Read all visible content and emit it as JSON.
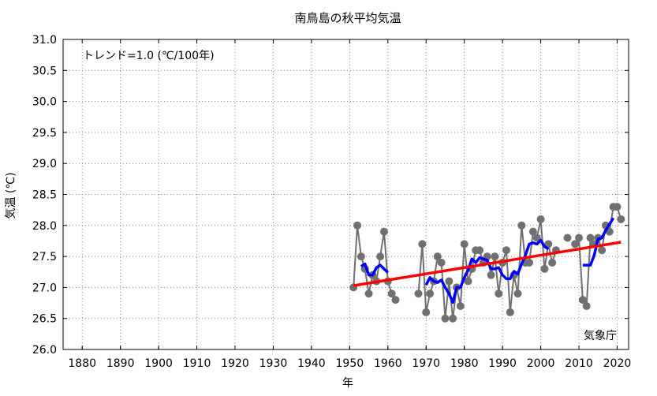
{
  "chart_data": {
    "type": "line",
    "title": "南鳥島の秋平均気温",
    "xlabel": "年",
    "ylabel": "気温 (℃)",
    "annotation": "トレンド=1.0 (℃/100年)",
    "credit": "気象庁",
    "xlim": [
      1875,
      2023
    ],
    "ylim": [
      26.0,
      31.0
    ],
    "xticks": [
      1880,
      1890,
      1900,
      1910,
      1920,
      1930,
      1940,
      1950,
      1960,
      1970,
      1980,
      1990,
      2000,
      2010,
      2020
    ],
    "yticks": [
      "26.0",
      "26.5",
      "27.0",
      "27.5",
      "28.0",
      "28.5",
      "29.0",
      "29.5",
      "30.0",
      "30.5",
      "31.0"
    ],
    "grid": true,
    "colors": {
      "annual": "#707070",
      "running_mean": "#0000ff",
      "trend": "#ff0000"
    },
    "series": [
      {
        "years": [
          1951,
          1952,
          1953,
          1954,
          1955,
          1956,
          1957,
          1958,
          1959,
          1960,
          1961,
          1962,
          1968,
          1969,
          1970,
          1971,
          1972,
          1973,
          1974,
          1975,
          1976,
          1977,
          1978,
          1979,
          1980,
          1981,
          1982,
          1983,
          1984,
          1985,
          1986,
          1987,
          1988,
          1989,
          1990,
          1991,
          1992,
          1993,
          1994,
          1995,
          1996,
          1997,
          1998,
          1999,
          2000,
          2001,
          2002,
          2003,
          2004,
          2007,
          2009,
          2010,
          2011,
          2012,
          2013,
          2014,
          2015,
          2016,
          2017,
          2018,
          2019,
          2020,
          2021
        ],
        "values": [
          27.0,
          28.0,
          27.5,
          27.3,
          26.9,
          27.2,
          27.1,
          27.5,
          27.9,
          27.1,
          26.9,
          26.8,
          26.9,
          27.7,
          26.6,
          26.9,
          27.1,
          27.5,
          27.4,
          26.5,
          27.1,
          26.5,
          27.0,
          26.7,
          27.7,
          27.1,
          27.3,
          27.6,
          27.6,
          27.4,
          27.5,
          27.2,
          27.5,
          26.9,
          27.4,
          27.6,
          26.6,
          27.2,
          26.9,
          28.0,
          27.4,
          27.4,
          27.9,
          27.8,
          28.1,
          27.3,
          27.7,
          27.4,
          27.6,
          27.8,
          27.7,
          27.8,
          26.8,
          26.7,
          27.8,
          27.7,
          27.8,
          27.6,
          28.0,
          27.9,
          28.3,
          28.3,
          28.1
        ]
      }
    ],
    "running_mean_window": 5,
    "trend": {
      "start": [
        1951,
        27.03
      ],
      "end": [
        2021,
        27.73
      ]
    }
  }
}
